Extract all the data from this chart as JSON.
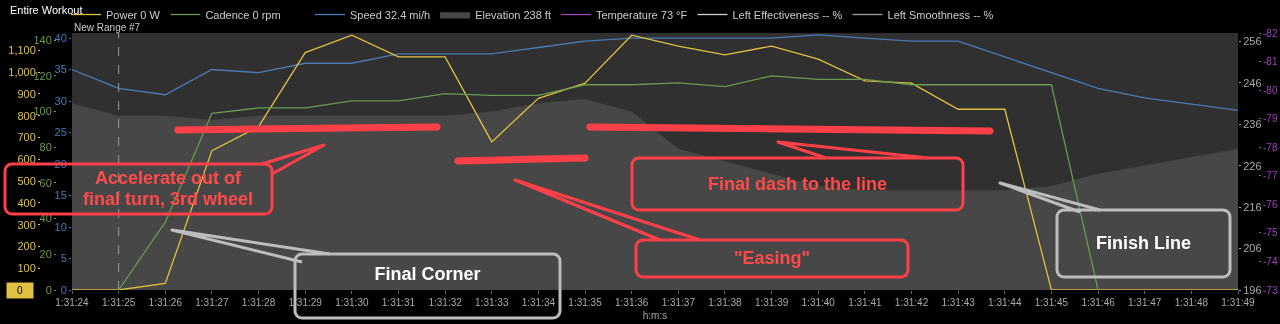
{
  "chart_data": [
    {
      "type": "line",
      "title": "Entire Workout",
      "tick_labels": "y",
      "categories": [
        "1:31:24",
        "1:31:25",
        "1:31:26",
        "1:31:27",
        "1:31:28",
        "1:31:29",
        "1:31:30",
        "1:31:31",
        "1:31:32",
        "1:31:33",
        "1:31:34",
        "1:31:35",
        "1:31:36",
        "1:31:37",
        "1:31:38",
        "1:31:39",
        "1:31:40",
        "1:31:41",
        "1:31:42",
        "1:31:43",
        "1:31:44",
        "1:31:45",
        "1:31:46",
        "1:31:47",
        "1:31:48",
        "1:31:49"
      ],
      "series": [
        {
          "name": "Power 0 W",
          "color": "#e0c040",
          "values": [
            0,
            0,
            30,
            640,
            750,
            1090,
            1170,
            1070,
            1070,
            680,
            880,
            950,
            1170,
            1120,
            1080,
            1120,
            1060,
            960,
            950,
            830,
            830,
            0,
            0,
            0,
            0,
            0
          ]
        },
        {
          "name": "Cadence 0 rpm",
          "color": "#6a9a50",
          "axis": "y2",
          "values": [
            null,
            0,
            38,
            99,
            102,
            102,
            106,
            106,
            110,
            109,
            109,
            115,
            115,
            116,
            114,
            120,
            118,
            118,
            115,
            115,
            115,
            115,
            0,
            null,
            null,
            null
          ]
        }
      ],
      "ylim": [
        0,
        1180
      ],
      "yticks": [
        100,
        200,
        300,
        400,
        500,
        600,
        700,
        800,
        900,
        {
          "value": 1000,
          "label": "1,000"
        },
        {
          "value": 1100,
          "label": "1,100"
        }
      ],
      "y2lim": [
        0,
        144
      ],
      "y2ticks": [
        0,
        20,
        40,
        60,
        80,
        100,
        120,
        140
      ],
      "ref_lines": [
        {
          "axis": "x",
          "value": "1:31:25",
          "line_style": "dashed",
          "color": "#999999"
        }
      ],
      "legend": "top",
      "annotations": [
        "New Range #7",
        "0",
        "Accelerate out of final turn, 3rd wheel",
        "Final dash to the line",
        "\"Easing\"",
        "Final Corner",
        "Finish Line"
      ]
    },
    {
      "type": "line",
      "xlabel": "h:m:s",
      "categories": [
        "1:31:24",
        "1:31:25",
        "1:31:26",
        "1:31:27",
        "1:31:28",
        "1:31:29",
        "1:31:30",
        "1:31:31",
        "1:31:32",
        "1:31:33",
        "1:31:34",
        "1:31:35",
        "1:31:36",
        "1:31:37",
        "1:31:38",
        "1:31:39",
        "1:31:40",
        "1:31:41",
        "1:31:42",
        "1:31:43",
        "1:31:44",
        "1:31:45",
        "1:31:46",
        "1:31:47",
        "1:31:48",
        "1:31:49"
      ],
      "series": [
        {
          "name": "Speed 32.4 mi/h",
          "color": "#4a7ab4",
          "values": [
            35,
            32,
            31,
            35,
            34.5,
            36,
            36,
            37.5,
            37.5,
            37.5,
            38.5,
            39.5,
            40,
            40,
            40,
            40,
            40.5,
            40,
            39.5,
            39.5,
            37,
            34.5,
            32,
            30.5,
            29.5,
            28.5
          ]
        },
        {
          "name": "Elevation 238 ft",
          "color": "#474747",
          "type": "area",
          "axis": "y2",
          "values": [
            241,
            238,
            238,
            237,
            238,
            238,
            238,
            238,
            238,
            239,
            241,
            242,
            239,
            230,
            227,
            224,
            221,
            220,
            220,
            220,
            220,
            221,
            224,
            226,
            228,
            230
          ]
        },
        {
          "name": "Temperature 73 °F",
          "color": "#a040c0",
          "axis": "y3",
          "values": [
            null,
            null,
            null,
            null,
            null,
            null,
            null,
            null,
            null,
            null,
            null,
            null,
            null,
            null,
            null,
            null,
            null,
            null,
            null,
            null,
            null,
            null,
            null,
            null,
            null,
            null
          ]
        },
        {
          "name": "Left Effectiveness -- %",
          "color": "#d0d0d0",
          "values": [
            null,
            null,
            null,
            null,
            null,
            null,
            null,
            null,
            null,
            null,
            null,
            null,
            null,
            null,
            null,
            null,
            null,
            null,
            null,
            null,
            null,
            null,
            null,
            null,
            null,
            null
          ]
        },
        {
          "name": "Left Smoothness -- %",
          "color": "#a0a0a0",
          "values": [
            null,
            null,
            null,
            null,
            null,
            null,
            null,
            null,
            null,
            null,
            null,
            null,
            null,
            null,
            null,
            null,
            null,
            null,
            null,
            null,
            null,
            null,
            null,
            null,
            null,
            null
          ]
        }
      ],
      "ylim": [
        0,
        40.8
      ],
      "yticks": [
        0,
        5,
        10,
        15,
        20,
        25,
        30,
        35,
        40
      ],
      "y2lim": [
        196,
        258
      ],
      "y2ticks": [
        196,
        206,
        216,
        226,
        236,
        246,
        256
      ],
      "y3lim": [
        -73,
        -82
      ],
      "y3ticks": [
        -73,
        -74,
        -75,
        -76,
        -77,
        -78,
        -79,
        -80,
        -81,
        -82
      ],
      "legend": "top"
    }
  ]
}
